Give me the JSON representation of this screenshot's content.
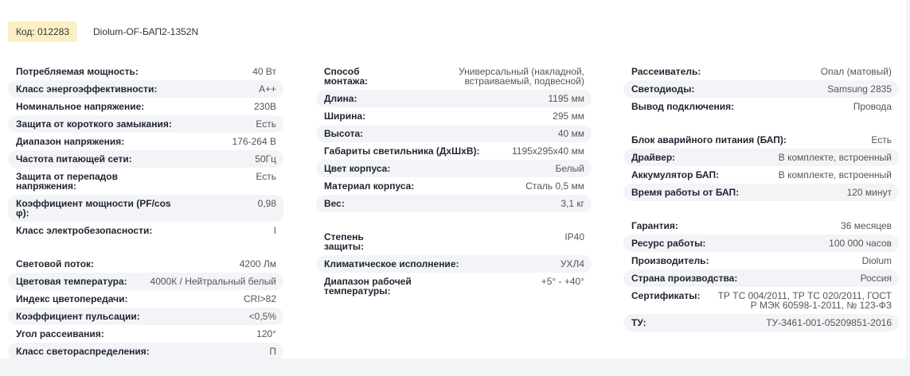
{
  "header": {
    "code": "Код: 012283",
    "model": "Diolum-OF-БАП2-1352N",
    "badge_color": "#fcefc6"
  },
  "columns": [
    {
      "groups": [
        {
          "rows": [
            {
              "label": "Потребляемая мощность:",
              "value": "40 Вт"
            },
            {
              "label": "Класс энергоэффективности:",
              "value": "A++"
            },
            {
              "label": "Номинальное напряжение:",
              "value": "230В"
            },
            {
              "label": "Защита от короткого замыкания:",
              "value": "Есть"
            },
            {
              "label": "Диапазон напряжения:",
              "value": "176-264 В"
            },
            {
              "label": "Частота питающей сети:",
              "value": "50Гц"
            },
            {
              "label": "Защита от перепадов напряжения:",
              "value": "Есть"
            },
            {
              "label": "Коэффициент мощности (PF/cos φ):",
              "value": "0,98"
            },
            {
              "label": "Класс электробезопасности:",
              "value": "I"
            }
          ]
        },
        {
          "rows": [
            {
              "label": "Световой поток:",
              "value": "4200 Лм"
            },
            {
              "label": "Цветовая температура:",
              "value": "4000К / Нейтральный белый"
            },
            {
              "label": "Индекс цветопередачи:",
              "value": "CRI>82"
            },
            {
              "label": "Коэффициент пульсации:",
              "value": "<0,5%"
            },
            {
              "label": "Угол рассеивания:",
              "value": "120°"
            },
            {
              "label": "Класс светораспределения:",
              "value": "П"
            }
          ]
        }
      ]
    },
    {
      "groups": [
        {
          "rows": [
            {
              "label": "Способ монтажа:",
              "value": "Универсальный (накладной, встраиваемый, подвесной)"
            },
            {
              "label": "Длина:",
              "value": "1195 мм"
            },
            {
              "label": "Ширина:",
              "value": "295 мм"
            },
            {
              "label": "Высота:",
              "value": "40 мм"
            },
            {
              "label": "Габариты светильника (ДхШхВ):",
              "value": "1195x295x40 мм"
            },
            {
              "label": "Цвет корпуса:",
              "value": "Белый"
            },
            {
              "label": "Материал корпуса:",
              "value": "Сталь 0,5 мм"
            },
            {
              "label": "Вес:",
              "value": "3,1 кг"
            }
          ]
        },
        {
          "rows": [
            {
              "label": "Степень защиты:",
              "value": "IP40"
            },
            {
              "label": "Климатическое исполнение:",
              "value": "УХЛ4"
            },
            {
              "label": "Диапазон рабочей температуры:",
              "value": "+5° - +40°"
            }
          ]
        }
      ]
    },
    {
      "groups": [
        {
          "rows": [
            {
              "label": "Рассеиватель:",
              "value": "Опал (матовый)"
            },
            {
              "label": "Светодиоды:",
              "value": "Samsung 2835"
            },
            {
              "label": "Вывод подключения:",
              "value": "Провода"
            }
          ]
        },
        {
          "rows": [
            {
              "label": "Блок аварийного питания (БАП):",
              "value": "Есть"
            },
            {
              "label": "Драйвер:",
              "value": "В комплекте, встроенный"
            },
            {
              "label": "Аккумулятор БАП:",
              "value": "В комплекте, встроенный"
            },
            {
              "label": "Время работы от БАП:",
              "value": "120 минут"
            }
          ]
        },
        {
          "rows": [
            {
              "label": "Гарантия:",
              "value": "36 месяцев"
            },
            {
              "label": "Ресурс работы:",
              "value": "100 000 часов"
            },
            {
              "label": "Производитель:",
              "value": "Diolum"
            },
            {
              "label": "Страна производства:",
              "value": "Россия"
            },
            {
              "label": "Сертификаты:",
              "value": "ТР ТС 004/2011, ТР ТС 020/2011, ГОСТ Р МЭК 60598-1-2011, № 123-ФЗ"
            },
            {
              "label": "ТУ:",
              "value": "ТУ-3461-001-05209851-2016"
            }
          ]
        }
      ]
    }
  ]
}
